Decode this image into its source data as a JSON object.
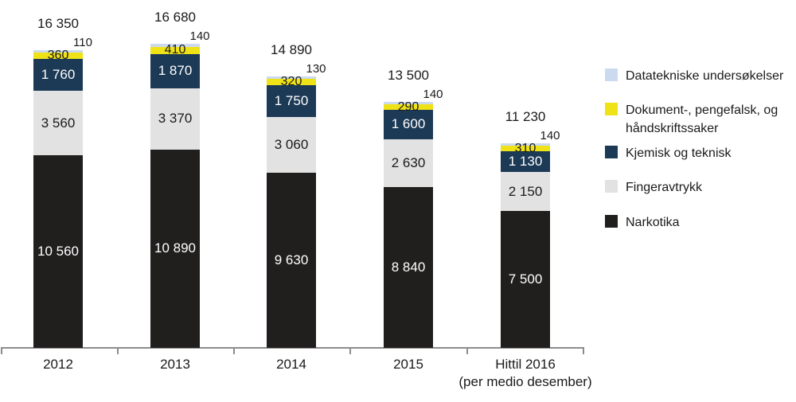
{
  "chart_data": {
    "type": "bar",
    "stacked": true,
    "title": "",
    "categories": [
      "2012",
      "2013",
      "2014",
      "2015",
      "Hittil 2016\n(per medio desember)"
    ],
    "totals": [
      16350,
      16680,
      14890,
      13500,
      11230
    ],
    "series": [
      {
        "name": "Narkotika",
        "color": "#211e1e",
        "label_color": "#ffffff",
        "label_style": "inside",
        "values": [
          10560,
          10890,
          9630,
          8840,
          7500
        ]
      },
      {
        "name": "Fingeravtrykk",
        "color": "#e2e2e2",
        "label_color": "#1a1a1a",
        "label_style": "inside",
        "values": [
          3560,
          3370,
          3060,
          2630,
          2150
        ]
      },
      {
        "name": "Kjemisk og teknisk",
        "color": "#1c3a56",
        "label_color": "#ffffff",
        "label_style": "inside",
        "values": [
          1760,
          1870,
          1750,
          1600,
          1130
        ]
      },
      {
        "name": "Dokument-, pengefalsk, og håndskriftssaker",
        "color": "#efe217",
        "label_color": "#1a1a1a",
        "label_style": "band-overlay",
        "values": [
          360,
          410,
          320,
          290,
          310
        ]
      },
      {
        "name": "Datatekniske undersøkelser",
        "color": "#cbdaef",
        "label_color": "#1a1a1a",
        "label_style": "top-right",
        "values": [
          110,
          140,
          130,
          140,
          140
        ]
      }
    ],
    "legend_position": "right",
    "legend_order": "top-segment-first",
    "number_format": "space-thousands",
    "y_axis_visible": false,
    "x_axis_line": true,
    "axis_color": "#8c8c8c",
    "text_color": "#1a1a1a",
    "ylim": [
      0,
      16680
    ]
  }
}
